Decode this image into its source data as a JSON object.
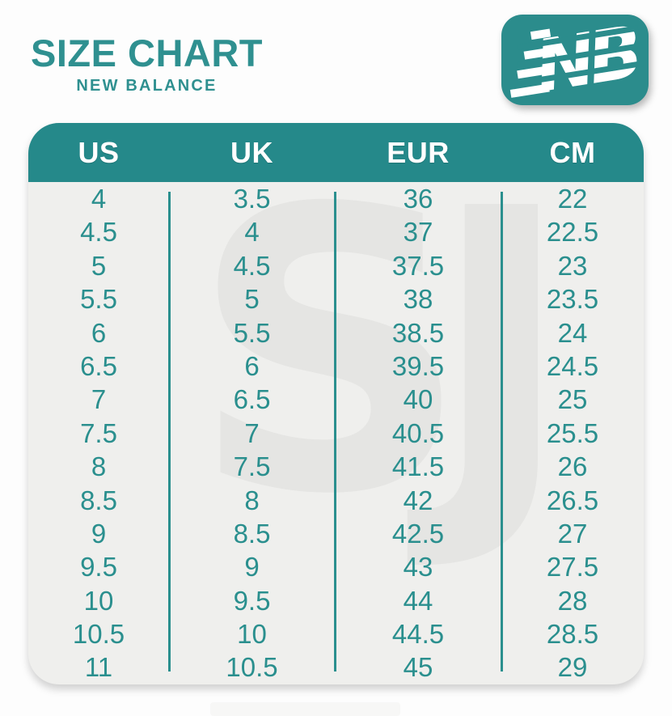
{
  "header": {
    "title": "SIZE CHART",
    "subtitle": "NEW BALANCE"
  },
  "logo": {
    "icon": "new-balance-nb-logo"
  },
  "watermark": {
    "text": "SJ"
  },
  "colors": {
    "title_text": "#2f9090",
    "table_header_bg": "#25898a",
    "table_header_text": "#ffffff",
    "value_text": "#2a8f8e",
    "card_bg": "#efefed",
    "divider": "#2a8f8e",
    "logo_bg": "#2b8c8c",
    "watermark_gray": "#e5e5e3"
  },
  "chart_data": {
    "type": "table",
    "title": "SIZE CHART",
    "subtitle": "NEW BALANCE",
    "columns": [
      "US",
      "UK",
      "EUR",
      "CM"
    ],
    "rows": [
      [
        "4",
        "3.5",
        "36",
        "22"
      ],
      [
        "4.5",
        "4",
        "37",
        "22.5"
      ],
      [
        "5",
        "4.5",
        "37.5",
        "23"
      ],
      [
        "5.5",
        "5",
        "38",
        "23.5"
      ],
      [
        "6",
        "5.5",
        "38.5",
        "24"
      ],
      [
        "6.5",
        "6",
        "39.5",
        "24.5"
      ],
      [
        "7",
        "6.5",
        "40",
        "25"
      ],
      [
        "7.5",
        "7",
        "40.5",
        "25.5"
      ],
      [
        "8",
        "7.5",
        "41.5",
        "26"
      ],
      [
        "8.5",
        "8",
        "42",
        "26.5"
      ],
      [
        "9",
        "8.5",
        "42.5",
        "27"
      ],
      [
        "9.5",
        "9",
        "43",
        "27.5"
      ],
      [
        "10",
        "9.5",
        "44",
        "28"
      ],
      [
        "10.5",
        "10",
        "44.5",
        "28.5"
      ],
      [
        "11",
        "10.5",
        "45",
        "29"
      ]
    ]
  }
}
